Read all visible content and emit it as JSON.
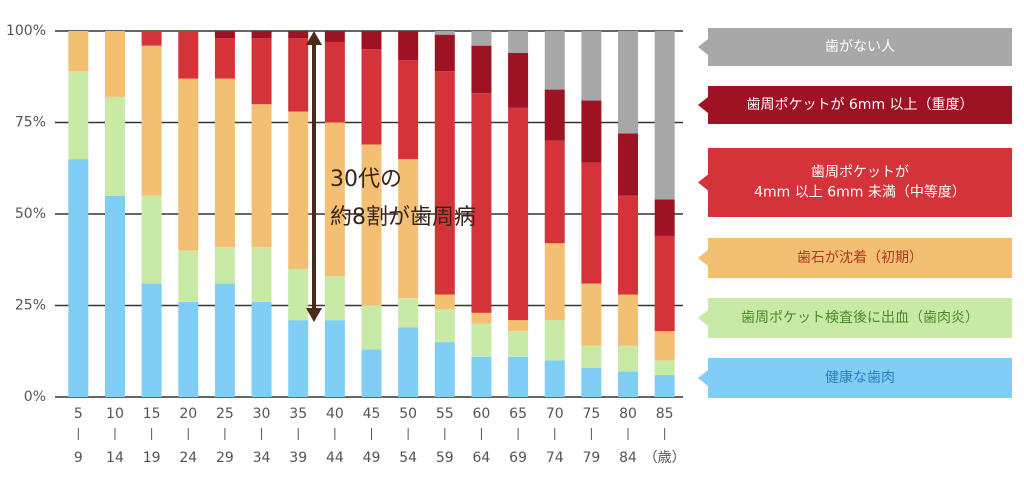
{
  "chart_data": {
    "type": "stacked_bar",
    "categories": [
      [
        "5",
        "9"
      ],
      [
        "10",
        "14"
      ],
      [
        "15",
        "19"
      ],
      [
        "20",
        "24"
      ],
      [
        "25",
        "29"
      ],
      [
        "30",
        "34"
      ],
      [
        "35",
        "39"
      ],
      [
        "40",
        "44"
      ],
      [
        "45",
        "49"
      ],
      [
        "50",
        "54"
      ],
      [
        "55",
        "59"
      ],
      [
        "60",
        "64"
      ],
      [
        "65",
        "69"
      ],
      [
        "70",
        "74"
      ],
      [
        "75",
        "79"
      ],
      [
        "80",
        "84"
      ],
      [
        "85",
        "（歳）"
      ]
    ],
    "series": [
      {
        "name": "健康な歯肉",
        "color": "#80cdf5",
        "text_color": "#2a7fc0",
        "values": [
          65,
          55,
          31,
          26,
          31,
          26,
          21,
          21,
          13,
          19,
          15,
          11,
          11,
          10,
          8,
          7,
          6
        ]
      },
      {
        "name": "歯周ポケット検査後に出血（歯肉炎）",
        "color": "#c9eaa6",
        "text_color": "#4a8a2a",
        "values": [
          24,
          27,
          24,
          14,
          10,
          15,
          14,
          12,
          12,
          8,
          9,
          9,
          7,
          11,
          6,
          7,
          4
        ]
      },
      {
        "name": "歯石が沈着（初期）",
        "color": "#f2bf73",
        "text_color": "#b03a1e",
        "values": [
          11,
          18,
          41,
          47,
          46,
          39,
          43,
          42,
          44,
          38,
          4,
          3,
          3,
          21,
          17,
          14,
          8
        ]
      },
      {
        "name": "歯周ポケットが\n4mm 以上 6mm 未満（中等度）",
        "color": "#d5333a",
        "text_color": "#ffffff",
        "values": [
          0,
          0,
          4,
          13,
          11,
          18,
          20,
          22,
          26,
          27,
          61,
          60,
          58,
          28,
          33,
          27,
          26
        ]
      },
      {
        "name": "歯周ポケットが 6mm 以上（重度）",
        "color": "#9e1324",
        "text_color": "#ffffff",
        "values": [
          0,
          0,
          0,
          0,
          2,
          2,
          2,
          3,
          5,
          8,
          10,
          13,
          15,
          14,
          17,
          17,
          10
        ]
      },
      {
        "name": "歯がない人",
        "color": "#a8a8a8",
        "text_color": "#ffffff",
        "values": [
          0,
          0,
          0,
          0,
          0,
          0,
          0,
          0,
          0,
          0,
          1,
          4,
          6,
          16,
          19,
          28,
          46
        ]
      }
    ],
    "annotation": [
      "30代の",
      "約8割が歯周病"
    ],
    "ylim": [
      0,
      100
    ],
    "yticks": [
      {
        "value": 0,
        "label": "0%"
      },
      {
        "value": 25,
        "label": "25%"
      },
      {
        "value": 50,
        "label": "50%"
      },
      {
        "value": 75,
        "label": "75%"
      },
      {
        "value": 100,
        "label": "100%"
      }
    ],
    "grid": true
  }
}
